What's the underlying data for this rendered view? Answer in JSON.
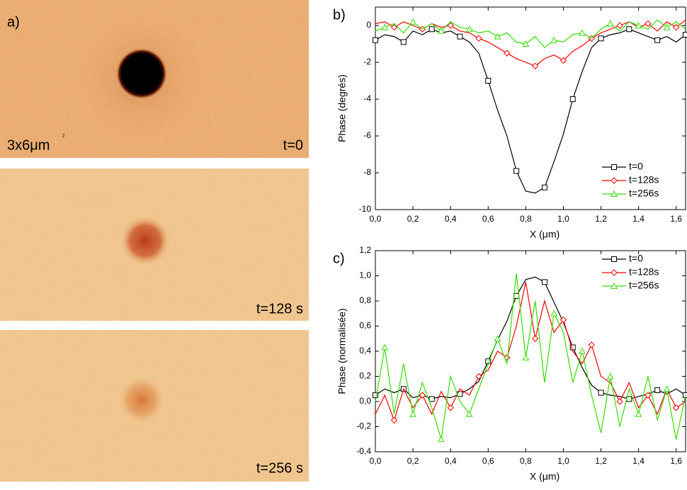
{
  "panel_a": {
    "label": "a)",
    "scale": "3x6μm",
    "scale_sup": "2",
    "frames": [
      {
        "time": "t=0"
      },
      {
        "time": "t=128 s"
      },
      {
        "time": "t=256 s"
      }
    ]
  },
  "chart_data": [
    {
      "type": "line",
      "label": "b)",
      "x_label": "X (μm)",
      "y_label": "Phase (degrés)",
      "legend": "lower right",
      "x": [
        0,
        0.05,
        0.1,
        0.15,
        0.2,
        0.25,
        0.3,
        0.35,
        0.4,
        0.45,
        0.5,
        0.55,
        0.6,
        0.65,
        0.7,
        0.75,
        0.8,
        0.85,
        0.9,
        0.95,
        1.0,
        1.05,
        1.1,
        1.15,
        1.2,
        1.25,
        1.3,
        1.35,
        1.4,
        1.45,
        1.5,
        1.55,
        1.6,
        1.65
      ],
      "xlim": [
        0,
        1.65
      ],
      "xticks": [
        {
          "value": 0,
          "label": "0,0"
        },
        {
          "value": 0.2,
          "label": "0,2"
        },
        {
          "value": 0.4,
          "label": "0,4"
        },
        {
          "value": 0.6,
          "label": "0,6"
        },
        {
          "value": 0.8,
          "label": "0,8"
        },
        {
          "value": 1.0,
          "label": "1,0"
        },
        {
          "value": 1.2,
          "label": "1,2"
        },
        {
          "value": 1.4,
          "label": "1,4"
        },
        {
          "value": 1.6,
          "label": "1,6"
        }
      ],
      "ylim": [
        -10,
        1
      ],
      "yticks": [
        0,
        -2,
        -4,
        -6,
        -8,
        -10
      ],
      "series": [
        {
          "name": "t=0",
          "color": "#000000",
          "marker": "square",
          "values": [
            -0.8,
            -0.5,
            -0.6,
            -0.9,
            -0.3,
            -0.5,
            -0.2,
            -0.4,
            -0.3,
            -0.6,
            -0.9,
            -1.5,
            -3.0,
            -4.6,
            -6.0,
            -7.9,
            -9.0,
            -9.1,
            -8.8,
            -7.4,
            -5.9,
            -4.0,
            -2.5,
            -1.2,
            -0.7,
            -0.5,
            -0.4,
            -0.2,
            -0.4,
            -0.6,
            -0.8,
            -0.6,
            -0.9,
            -0.5
          ]
        },
        {
          "name": "t=128s",
          "color": "#ff0000",
          "marker": "diamond",
          "values": [
            0.1,
            0.2,
            -0.1,
            0.2,
            0,
            -0.2,
            0.1,
            -0.1,
            0,
            -0.3,
            -0.4,
            -0.7,
            -0.9,
            -1.2,
            -1.5,
            -1.8,
            -2.0,
            -2.2,
            -1.8,
            -1.6,
            -1.9,
            -1.4,
            -1.1,
            -0.7,
            -0.4,
            -0.2,
            0,
            0.2,
            -0.1,
            0.1,
            -0.3,
            0.2,
            -0.1,
            0.3
          ]
        },
        {
          "name": "t=256s",
          "color": "#33dd00",
          "marker": "triangle",
          "values": [
            -0.3,
            -0.1,
            0.1,
            -0.4,
            0.2,
            -0.2,
            0.1,
            -0.3,
            0.2,
            -0.1,
            -0.2,
            -0.4,
            -0.3,
            -0.6,
            -0.4,
            -0.9,
            -1.0,
            -0.6,
            -1.2,
            -0.8,
            -0.9,
            -0.5,
            -0.4,
            -0.7,
            -0.2,
            0.1,
            -0.3,
            0.2,
            0,
            -0.2,
            0.3,
            -0.1,
            0.2,
            -0.2
          ]
        }
      ]
    },
    {
      "type": "line",
      "label": "c)",
      "x_label": "X (μm)",
      "y_label": "Phase (normalisée)",
      "legend": "upper right",
      "x": [
        0,
        0.05,
        0.1,
        0.15,
        0.2,
        0.25,
        0.3,
        0.35,
        0.4,
        0.45,
        0.5,
        0.55,
        0.6,
        0.65,
        0.7,
        0.75,
        0.8,
        0.85,
        0.9,
        0.95,
        1.0,
        1.05,
        1.1,
        1.15,
        1.2,
        1.25,
        1.3,
        1.35,
        1.4,
        1.45,
        1.5,
        1.55,
        1.6,
        1.65
      ],
      "xlim": [
        0,
        1.65
      ],
      "xticks": [
        {
          "value": 0,
          "label": "0,0"
        },
        {
          "value": 0.2,
          "label": "0,2"
        },
        {
          "value": 0.4,
          "label": "0,4"
        },
        {
          "value": 0.6,
          "label": "0,6"
        },
        {
          "value": 0.8,
          "label": "0,8"
        },
        {
          "value": 1.0,
          "label": "1,0"
        },
        {
          "value": 1.2,
          "label": "1,2"
        },
        {
          "value": 1.4,
          "label": "1,4"
        },
        {
          "value": 1.6,
          "label": "1,6"
        }
      ],
      "ylim": [
        -0.4,
        1.2
      ],
      "yticks": [
        {
          "value": -0.4,
          "label": "-0,4"
        },
        {
          "value": -0.2,
          "label": "-0,2"
        },
        {
          "value": 0,
          "label": "0,0"
        },
        {
          "value": 0.2,
          "label": "0,2"
        },
        {
          "value": 0.4,
          "label": "0,4"
        },
        {
          "value": 0.6,
          "label": "0,6"
        },
        {
          "value": 0.8,
          "label": "0,8"
        },
        {
          "value": 1.0,
          "label": "1,0"
        },
        {
          "value": 1.2,
          "label": "1,2"
        }
      ],
      "series": [
        {
          "name": "t=0",
          "color": "#000000",
          "marker": "square",
          "values": [
            0.05,
            0.1,
            0.07,
            0.1,
            0.03,
            0.05,
            0.02,
            0.04,
            0.03,
            0.06,
            0.1,
            0.16,
            0.32,
            0.49,
            0.64,
            0.84,
            0.97,
            0.99,
            0.95,
            0.79,
            0.63,
            0.43,
            0.27,
            0.13,
            0.07,
            0.05,
            0.04,
            0.02,
            0.04,
            0.06,
            0.09,
            0.06,
            0.1,
            0.05
          ]
        },
        {
          "name": "t=128s",
          "color": "#ff0000",
          "marker": "diamond",
          "values": [
            -0.1,
            0.05,
            -0.15,
            0.1,
            -0.05,
            0.05,
            -0.1,
            0.08,
            -0.05,
            0.1,
            0.05,
            0.2,
            0.25,
            0.4,
            0.35,
            0.6,
            0.95,
            0.5,
            0.8,
            0.55,
            0.65,
            0.4,
            0.3,
            0.45,
            0.2,
            0.15,
            0,
            0.15,
            -0.05,
            0.05,
            -0.1,
            0.1,
            -0.05,
            0
          ]
        },
        {
          "name": "t=256s",
          "color": "#33dd00",
          "marker": "triangle",
          "values": [
            0,
            0.43,
            -0.1,
            0.3,
            -0.1,
            0.15,
            -0.05,
            -0.3,
            0.2,
            0,
            -0.1,
            0.1,
            0.3,
            0.5,
            0.3,
            1.02,
            0.35,
            0.8,
            0.15,
            0.7,
            0.55,
            0.15,
            0.4,
            0.05,
            -0.25,
            0.2,
            -0.2,
            0.1,
            -0.1,
            0.2,
            -0.15,
            0.1,
            -0.3,
            0.05
          ]
        }
      ]
    }
  ]
}
